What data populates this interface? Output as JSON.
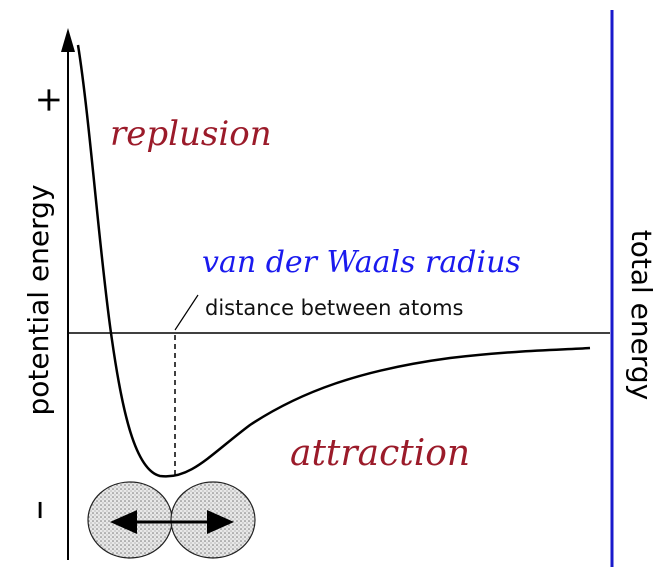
{
  "y_axis": {
    "plus": "+",
    "minus": "–",
    "label": "potential energy"
  },
  "right_axis": {
    "label": "total energy"
  },
  "regions": {
    "repulsion": "replusion",
    "attraction": "attraction"
  },
  "annotations": {
    "radius": "van der Waals radius",
    "x_label": "distance between atoms"
  }
}
